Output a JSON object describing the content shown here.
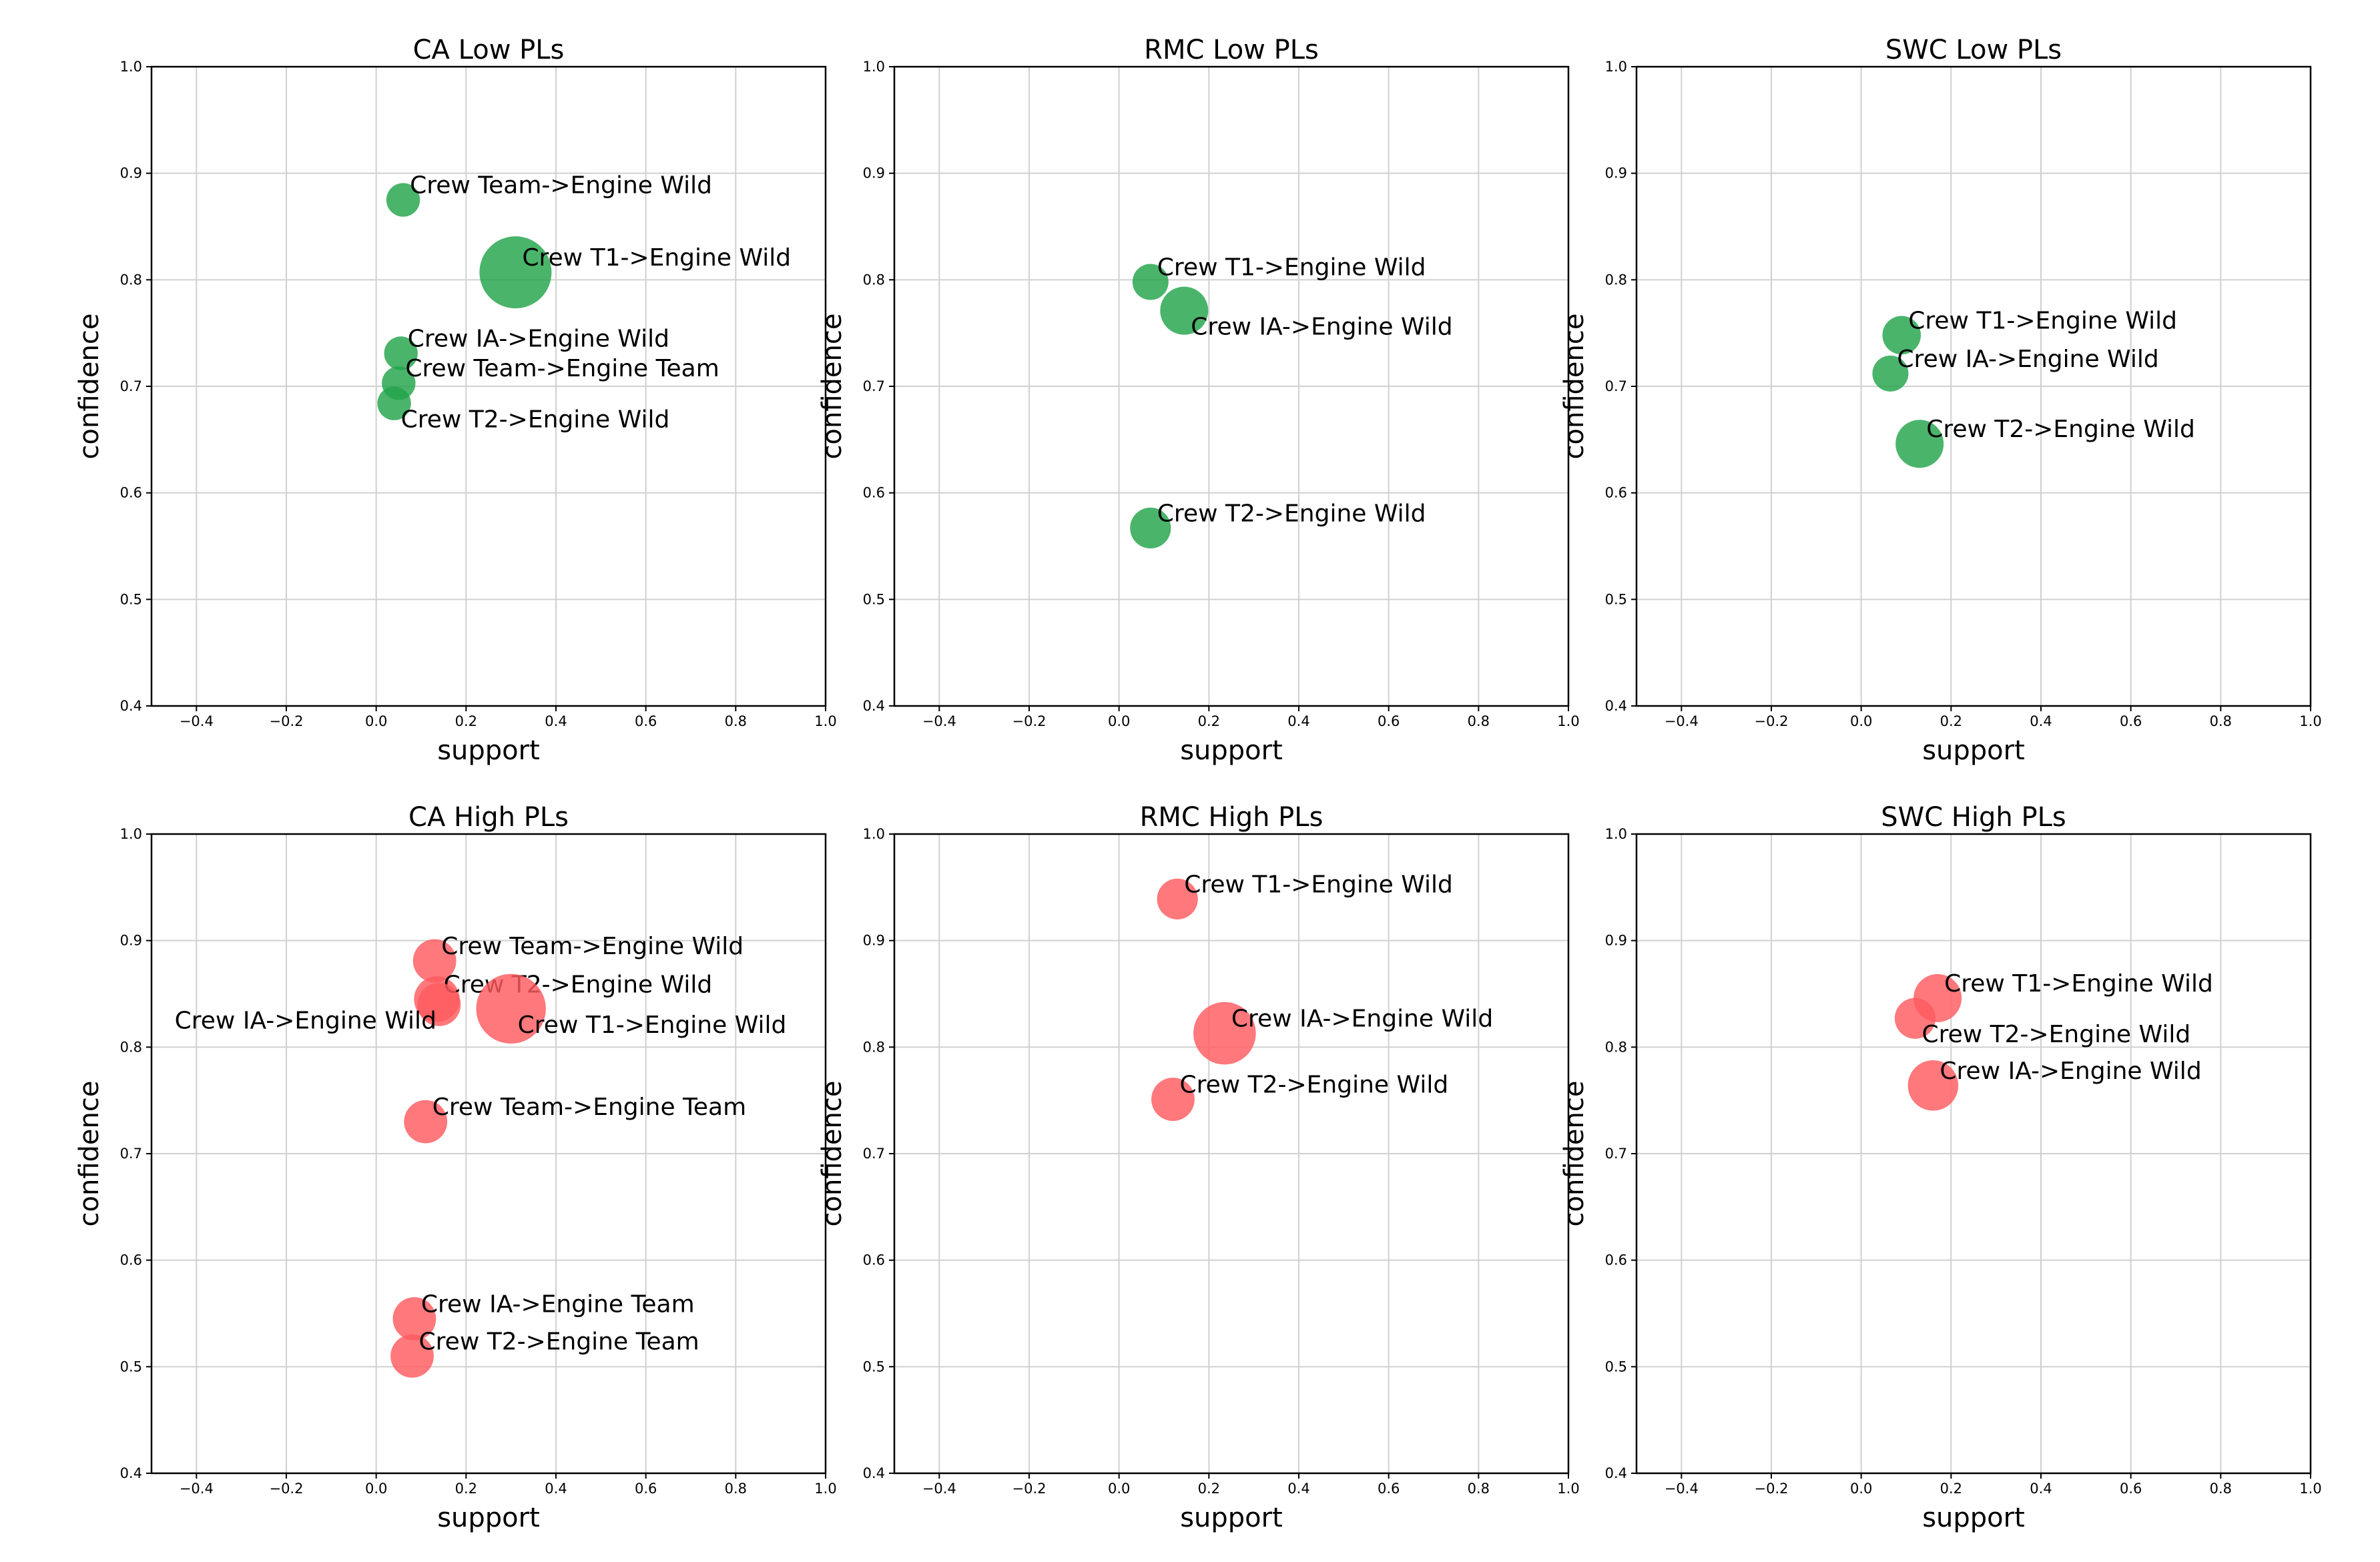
{
  "colors": {
    "low": "#22a34a",
    "high": "#ff5a5f",
    "grid": "#d0d0d0",
    "axis": "#000000"
  },
  "chart_data": [
    {
      "type": "scatter",
      "title": "CA Low PLs",
      "xlabel": "support",
      "ylabel": "confidence",
      "xlim": [
        -0.5,
        1.0
      ],
      "ylim": [
        0.4,
        1.0
      ],
      "xticks": [
        -0.4,
        -0.2,
        0.0,
        0.2,
        0.4,
        0.6,
        0.8,
        1.0
      ],
      "xticklabels": [
        "−0.4",
        "−0.2",
        "0.0",
        "0.2",
        "0.4",
        "0.6",
        "0.8",
        "1.0"
      ],
      "yticks": [
        0.4,
        0.5,
        0.6,
        0.7,
        0.8,
        0.9,
        1.0
      ],
      "yticklabels": [
        "0.4",
        "0.5",
        "0.6",
        "0.7",
        "0.8",
        "0.9",
        "1.0"
      ],
      "group": "low",
      "points": [
        {
          "label": "Crew Team->Engine Wild",
          "x": 0.06,
          "y": 0.875,
          "size": 0.04,
          "anchor": "above-right"
        },
        {
          "label": "Crew T1->Engine Wild",
          "x": 0.31,
          "y": 0.807,
          "size": 0.2,
          "anchor": "above-right"
        },
        {
          "label": "Crew IA->Engine Wild",
          "x": 0.055,
          "y": 0.731,
          "size": 0.04,
          "anchor": "above-right"
        },
        {
          "label": "Crew Team->Engine Team",
          "x": 0.05,
          "y": 0.703,
          "size": 0.04,
          "anchor": "above-right"
        },
        {
          "label": "Crew T2->Engine Wild",
          "x": 0.04,
          "y": 0.684,
          "size": 0.04,
          "anchor": "below-right"
        }
      ]
    },
    {
      "type": "scatter",
      "title": "RMC Low PLs",
      "xlabel": "support",
      "ylabel": "confidence",
      "xlim": [
        -0.5,
        1.0
      ],
      "ylim": [
        0.4,
        1.0
      ],
      "xticks": [
        -0.4,
        -0.2,
        0.0,
        0.2,
        0.4,
        0.6,
        0.8,
        1.0
      ],
      "xticklabels": [
        "−0.4",
        "−0.2",
        "0.0",
        "0.2",
        "0.4",
        "0.6",
        "0.8",
        "1.0"
      ],
      "yticks": [
        0.4,
        0.5,
        0.6,
        0.7,
        0.8,
        0.9,
        1.0
      ],
      "yticklabels": [
        "0.4",
        "0.5",
        "0.6",
        "0.7",
        "0.8",
        "0.9",
        "1.0"
      ],
      "group": "low",
      "points": [
        {
          "label": "Crew T1->Engine Wild",
          "x": 0.07,
          "y": 0.798,
          "size": 0.05,
          "anchor": "above-right"
        },
        {
          "label": "Crew IA->Engine Wild",
          "x": 0.145,
          "y": 0.771,
          "size": 0.1,
          "anchor": "below-right"
        },
        {
          "label": "Crew T2->Engine Wild",
          "x": 0.07,
          "y": 0.567,
          "size": 0.07,
          "anchor": "above-right"
        }
      ]
    },
    {
      "type": "scatter",
      "title": "SWC Low PLs",
      "xlabel": "support",
      "ylabel": "confidence",
      "xlim": [
        -0.5,
        1.0
      ],
      "ylim": [
        0.4,
        1.0
      ],
      "xticks": [
        -0.4,
        -0.2,
        0.0,
        0.2,
        0.4,
        0.6,
        0.8,
        1.0
      ],
      "xticklabels": [
        "−0.4",
        "−0.2",
        "0.0",
        "0.2",
        "0.4",
        "0.6",
        "0.8",
        "1.0"
      ],
      "yticks": [
        0.4,
        0.5,
        0.6,
        0.7,
        0.8,
        0.9,
        1.0
      ],
      "yticklabels": [
        "0.4",
        "0.5",
        "0.6",
        "0.7",
        "0.8",
        "0.9",
        "1.0"
      ],
      "group": "low",
      "points": [
        {
          "label": "Crew T1->Engine Wild",
          "x": 0.09,
          "y": 0.748,
          "size": 0.06,
          "anchor": "above-right"
        },
        {
          "label": "Crew IA->Engine Wild",
          "x": 0.065,
          "y": 0.712,
          "size": 0.05,
          "anchor": "above-right"
        },
        {
          "label": "Crew T2->Engine Wild",
          "x": 0.13,
          "y": 0.646,
          "size": 0.1,
          "anchor": "above-right"
        }
      ]
    },
    {
      "type": "scatter",
      "title": "CA High PLs",
      "xlabel": "support",
      "ylabel": "confidence",
      "xlim": [
        -0.5,
        1.0
      ],
      "ylim": [
        0.4,
        1.0
      ],
      "xticks": [
        -0.4,
        -0.2,
        0.0,
        0.2,
        0.4,
        0.6,
        0.8,
        1.0
      ],
      "xticklabels": [
        "−0.4",
        "−0.2",
        "0.0",
        "0.2",
        "0.4",
        "0.6",
        "0.8",
        "1.0"
      ],
      "yticks": [
        0.4,
        0.5,
        0.6,
        0.7,
        0.8,
        0.9,
        1.0
      ],
      "yticklabels": [
        "0.4",
        "0.5",
        "0.6",
        "0.7",
        "0.8",
        "0.9",
        "1.0"
      ],
      "group": "high",
      "points": [
        {
          "label": "Crew Team->Engine Wild",
          "x": 0.13,
          "y": 0.881,
          "size": 0.08,
          "anchor": "above-right"
        },
        {
          "label": "Crew T2->Engine Wild",
          "x": 0.135,
          "y": 0.845,
          "size": 0.09,
          "anchor": "above-right"
        },
        {
          "label": "Crew IA->Engine Wild",
          "x": 0.14,
          "y": 0.84,
          "size": 0.08,
          "anchor": "below-left"
        },
        {
          "label": "Crew T1->Engine Wild",
          "x": 0.3,
          "y": 0.836,
          "size": 0.19,
          "anchor": "below-right"
        },
        {
          "label": "Crew Team->Engine Team",
          "x": 0.11,
          "y": 0.73,
          "size": 0.08,
          "anchor": "above-right"
        },
        {
          "label": "Crew IA->Engine Team",
          "x": 0.085,
          "y": 0.545,
          "size": 0.08,
          "anchor": "above-right"
        },
        {
          "label": "Crew T2->Engine Team",
          "x": 0.08,
          "y": 0.51,
          "size": 0.08,
          "anchor": "above-right"
        }
      ]
    },
    {
      "type": "scatter",
      "title": "RMC High PLs",
      "xlabel": "support",
      "ylabel": "confidence",
      "xlim": [
        -0.5,
        1.0
      ],
      "ylim": [
        0.4,
        1.0
      ],
      "xticks": [
        -0.4,
        -0.2,
        0.0,
        0.2,
        0.4,
        0.6,
        0.8,
        1.0
      ],
      "xticklabels": [
        "−0.4",
        "−0.2",
        "0.0",
        "0.2",
        "0.4",
        "0.6",
        "0.8",
        "1.0"
      ],
      "yticks": [
        0.4,
        0.5,
        0.6,
        0.7,
        0.8,
        0.9,
        1.0
      ],
      "yticklabels": [
        "0.4",
        "0.5",
        "0.6",
        "0.7",
        "0.8",
        "0.9",
        "1.0"
      ],
      "group": "high",
      "points": [
        {
          "label": "Crew T1->Engine Wild",
          "x": 0.13,
          "y": 0.939,
          "size": 0.07,
          "anchor": "above-right"
        },
        {
          "label": "Crew IA->Engine Wild",
          "x": 0.235,
          "y": 0.813,
          "size": 0.16,
          "anchor": "above-right"
        },
        {
          "label": "Crew T2->Engine Wild",
          "x": 0.12,
          "y": 0.751,
          "size": 0.08,
          "anchor": "above-right"
        }
      ]
    },
    {
      "type": "scatter",
      "title": "SWC High PLs",
      "xlabel": "support",
      "ylabel": "confidence",
      "xlim": [
        -0.5,
        1.0
      ],
      "ylim": [
        0.4,
        1.0
      ],
      "xticks": [
        -0.4,
        -0.2,
        0.0,
        0.2,
        0.4,
        0.6,
        0.8,
        1.0
      ],
      "xticklabels": [
        "−0.4",
        "−0.2",
        "0.0",
        "0.2",
        "0.4",
        "0.6",
        "0.8",
        "1.0"
      ],
      "yticks": [
        0.4,
        0.5,
        0.6,
        0.7,
        0.8,
        0.9,
        1.0
      ],
      "yticklabels": [
        "0.4",
        "0.5",
        "0.6",
        "0.7",
        "0.8",
        "0.9",
        "1.0"
      ],
      "group": "high",
      "points": [
        {
          "label": "Crew T1->Engine Wild",
          "x": 0.17,
          "y": 0.846,
          "size": 0.1,
          "anchor": "above-right"
        },
        {
          "label": "Crew T2->Engine Wild",
          "x": 0.12,
          "y": 0.827,
          "size": 0.07,
          "anchor": "below-right"
        },
        {
          "label": "Crew IA->Engine Wild",
          "x": 0.16,
          "y": 0.764,
          "size": 0.11,
          "anchor": "above-right"
        }
      ]
    }
  ]
}
